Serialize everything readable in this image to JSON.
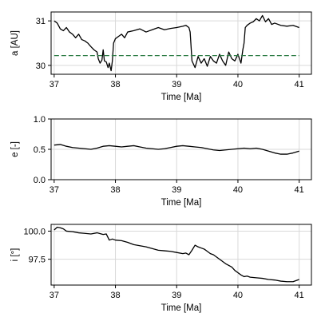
{
  "chart_data": [
    {
      "type": "line",
      "xlabel": "Time [Ma]",
      "ylabel": "a [AU]",
      "xlim": [
        36.95,
        41.2
      ],
      "ylim": [
        29.8,
        31.2
      ],
      "xticks": [
        37,
        38,
        39,
        40,
        41
      ],
      "yticks": [
        30,
        31
      ],
      "grid": true,
      "series": [
        {
          "color": "#000000",
          "style": "solid",
          "x": [
            37.0,
            37.05,
            37.1,
            37.15,
            37.2,
            37.25,
            37.3,
            37.35,
            37.4,
            37.45,
            37.5,
            37.55,
            37.6,
            37.65,
            37.7,
            37.72,
            37.75,
            37.78,
            37.8,
            37.82,
            37.85,
            37.88,
            37.9,
            37.93,
            37.95,
            37.97,
            38.0,
            38.05,
            38.1,
            38.15,
            38.2,
            38.3,
            38.4,
            38.5,
            38.6,
            38.7,
            38.8,
            38.9,
            39.0,
            39.1,
            39.15,
            39.2,
            39.22,
            39.25,
            39.3,
            39.35,
            39.4,
            39.45,
            39.5,
            39.55,
            39.6,
            39.65,
            39.7,
            39.75,
            39.8,
            39.85,
            39.9,
            39.95,
            40.0,
            40.05,
            40.08,
            40.1,
            40.12,
            40.15,
            40.2,
            40.25,
            40.3,
            40.35,
            40.4,
            40.45,
            40.5,
            40.55,
            40.6,
            40.7,
            40.8,
            40.9,
            41.0
          ],
          "y": [
            31.0,
            30.95,
            30.82,
            30.78,
            30.85,
            30.75,
            30.7,
            30.62,
            30.7,
            30.58,
            30.55,
            30.5,
            30.42,
            30.35,
            30.3,
            30.15,
            30.05,
            30.12,
            30.35,
            30.1,
            30.08,
            29.95,
            30.05,
            29.88,
            30.1,
            30.5,
            30.6,
            30.65,
            30.7,
            30.62,
            30.75,
            30.78,
            30.82,
            30.75,
            30.8,
            30.85,
            30.8,
            30.83,
            30.85,
            30.88,
            30.9,
            30.85,
            30.75,
            30.1,
            29.95,
            30.2,
            30.05,
            30.15,
            29.98,
            30.2,
            30.1,
            30.05,
            30.25,
            30.1,
            30.0,
            30.3,
            30.15,
            30.1,
            30.25,
            30.05,
            30.35,
            30.5,
            30.85,
            30.9,
            30.95,
            30.98,
            31.05,
            31.0,
            31.12,
            30.98,
            31.05,
            30.92,
            30.95,
            30.9,
            30.88,
            30.9,
            30.85
          ]
        },
        {
          "color": "#2e7d46",
          "style": "dashed",
          "x": [
            37.0,
            41.0
          ],
          "y": [
            30.22,
            30.22
          ]
        }
      ]
    },
    {
      "type": "line",
      "xlabel": "Time [Ma]",
      "ylabel": "e [-]",
      "xlim": [
        36.95,
        41.2
      ],
      "ylim": [
        0.0,
        1.0
      ],
      "xticks": [
        37,
        38,
        39,
        40,
        41
      ],
      "yticks": [
        0.0,
        0.5,
        1.0
      ],
      "grid": true,
      "series": [
        {
          "color": "#000000",
          "style": "solid",
          "x": [
            37.0,
            37.1,
            37.2,
            37.3,
            37.4,
            37.5,
            37.6,
            37.7,
            37.8,
            37.9,
            38.0,
            38.1,
            38.2,
            38.3,
            38.4,
            38.5,
            38.6,
            38.7,
            38.8,
            38.9,
            39.0,
            39.1,
            39.2,
            39.3,
            39.4,
            39.5,
            39.6,
            39.7,
            39.8,
            39.9,
            40.0,
            40.1,
            40.2,
            40.3,
            40.4,
            40.5,
            40.6,
            40.7,
            40.8,
            40.9,
            41.0
          ],
          "y": [
            0.57,
            0.58,
            0.55,
            0.53,
            0.52,
            0.51,
            0.5,
            0.52,
            0.55,
            0.56,
            0.55,
            0.54,
            0.55,
            0.56,
            0.54,
            0.52,
            0.51,
            0.5,
            0.51,
            0.53,
            0.55,
            0.56,
            0.55,
            0.54,
            0.53,
            0.51,
            0.49,
            0.48,
            0.49,
            0.5,
            0.51,
            0.52,
            0.51,
            0.52,
            0.5,
            0.47,
            0.44,
            0.42,
            0.42,
            0.44,
            0.47
          ]
        }
      ]
    },
    {
      "type": "line",
      "xlabel": "Time [Ma]",
      "ylabel": "i [°]",
      "xlim": [
        36.95,
        41.2
      ],
      "ylim": [
        95.2,
        100.6
      ],
      "xticks": [
        37,
        38,
        39,
        40,
        41
      ],
      "yticks": [
        97.5,
        100.0
      ],
      "ytick_labels": [
        "97.5",
        "100.0"
      ],
      "grid": true,
      "series": [
        {
          "color": "#000000",
          "style": "solid",
          "x": [
            37.0,
            37.05,
            37.1,
            37.15,
            37.2,
            37.3,
            37.4,
            37.5,
            37.6,
            37.7,
            37.8,
            37.85,
            37.9,
            37.95,
            38.0,
            38.1,
            38.2,
            38.3,
            38.4,
            38.5,
            38.6,
            38.7,
            38.8,
            38.9,
            39.0,
            39.1,
            39.15,
            39.2,
            39.25,
            39.3,
            39.35,
            39.4,
            39.45,
            39.5,
            39.55,
            39.6,
            39.7,
            39.8,
            39.9,
            39.95,
            40.0,
            40.05,
            40.1,
            40.15,
            40.2,
            40.3,
            40.4,
            40.5,
            40.6,
            40.7,
            40.8,
            40.9,
            41.0
          ],
          "y": [
            100.1,
            100.35,
            100.3,
            100.2,
            100.0,
            99.95,
            99.85,
            99.8,
            99.75,
            99.85,
            99.7,
            99.75,
            99.2,
            99.3,
            99.2,
            99.15,
            99.0,
            98.8,
            98.7,
            98.6,
            98.45,
            98.3,
            98.25,
            98.2,
            98.1,
            98.0,
            98.05,
            97.9,
            98.3,
            98.75,
            98.6,
            98.5,
            98.4,
            98.2,
            98.0,
            97.9,
            97.5,
            97.1,
            96.8,
            96.5,
            96.3,
            96.1,
            95.95,
            96.0,
            95.9,
            95.85,
            95.8,
            95.7,
            95.65,
            95.55,
            95.5,
            95.5,
            95.7
          ]
        }
      ]
    }
  ]
}
